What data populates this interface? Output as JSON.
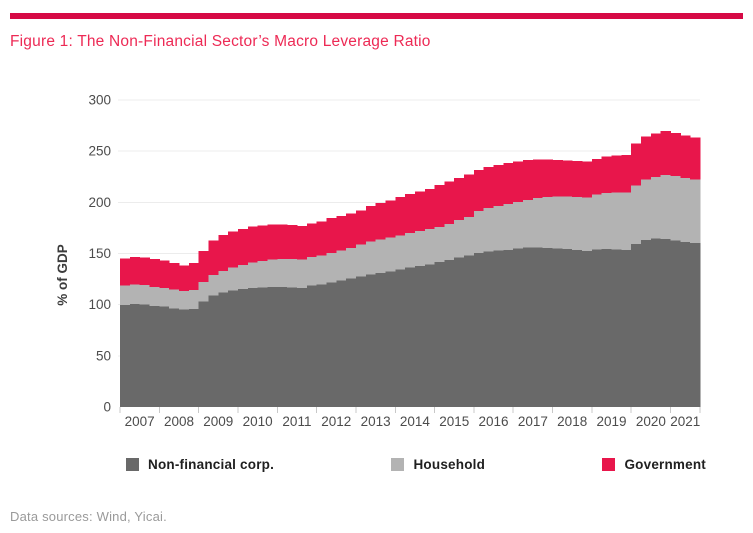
{
  "figure": {
    "caption": "Data sources: Wind, Yicai."
  },
  "colors": {
    "accent_rule": "#d60a45",
    "title_text": "#ed2a55",
    "axis_text": "#4c4c4c",
    "gridline": "#ececec",
    "tick": "#c8c8c8",
    "legend_text": "#202020",
    "caption_text": "#9a9a9a"
  },
  "chart_data": {
    "type": "bar",
    "stacked": true,
    "title": "Figure 1: The Non-Financial Sector’s Macro Leverage Ratio",
    "xlabel": "",
    "ylabel": "% of GDP",
    "ylim": [
      0,
      300
    ],
    "yticks": [
      0,
      50,
      100,
      150,
      200,
      250,
      300
    ],
    "grid": "horizontal",
    "legend_position": "bottom",
    "year_labels": [
      "2007",
      "2008",
      "2009",
      "2010",
      "2011",
      "2012",
      "2013",
      "2014",
      "2015",
      "2016",
      "2017",
      "2018",
      "2019",
      "2020",
      "2021"
    ],
    "x_quarters": [
      "2007Q1",
      "2007Q2",
      "2007Q3",
      "2007Q4",
      "2008Q1",
      "2008Q2",
      "2008Q3",
      "2008Q4",
      "2009Q1",
      "2009Q2",
      "2009Q3",
      "2009Q4",
      "2010Q1",
      "2010Q2",
      "2010Q3",
      "2010Q4",
      "2011Q1",
      "2011Q2",
      "2011Q3",
      "2011Q4",
      "2012Q1",
      "2012Q2",
      "2012Q3",
      "2012Q4",
      "2013Q1",
      "2013Q2",
      "2013Q3",
      "2013Q4",
      "2014Q1",
      "2014Q2",
      "2014Q3",
      "2014Q4",
      "2015Q1",
      "2015Q2",
      "2015Q3",
      "2015Q4",
      "2016Q1",
      "2016Q2",
      "2016Q3",
      "2016Q4",
      "2017Q1",
      "2017Q2",
      "2017Q3",
      "2017Q4",
      "2018Q1",
      "2018Q2",
      "2018Q3",
      "2018Q4",
      "2019Q1",
      "2019Q2",
      "2019Q3",
      "2019Q4",
      "2020Q1",
      "2020Q2",
      "2020Q3",
      "2020Q4",
      "2021Q1",
      "2021Q2",
      "2021Q3"
    ],
    "series": [
      {
        "name": "Non-financial corp.",
        "color": "#696969",
        "values": [
          99.5,
          100.5,
          100,
          98.5,
          98,
          96.5,
          95.5,
          96,
          103,
          109,
          112,
          114,
          115.5,
          116.5,
          117,
          117.5,
          117.5,
          117,
          116.5,
          118.5,
          119.5,
          121.5,
          123.5,
          125.5,
          127.5,
          129.5,
          131,
          132.5,
          134.5,
          136.5,
          138,
          139.5,
          141.5,
          143.5,
          146,
          148,
          150.5,
          152,
          153,
          153.5,
          155,
          156,
          156,
          155.5,
          155,
          154.5,
          153.5,
          152.5,
          154,
          154.5,
          154,
          153.5,
          159.5,
          163,
          164.5,
          164,
          162.5,
          161,
          160.5
        ]
      },
      {
        "name": "Household",
        "color": "#b3b3b3",
        "values": [
          19,
          19,
          19,
          19,
          18.5,
          18.5,
          18,
          18.5,
          19,
          20,
          21,
          22.5,
          23.5,
          24.5,
          25.5,
          26.5,
          27,
          27.5,
          27.5,
          28,
          28.5,
          29,
          29.5,
          30,
          31.5,
          32,
          32.5,
          33,
          33,
          33.5,
          34,
          34.5,
          34.5,
          35.5,
          36.5,
          37.5,
          41,
          42.5,
          43.5,
          45,
          45.5,
          46.5,
          48,
          49.5,
          50.5,
          51,
          51.5,
          52,
          53.5,
          54.5,
          55.5,
          56,
          57,
          59.5,
          60.5,
          62.5,
          63,
          63,
          62
        ]
      },
      {
        "name": "Government",
        "color": "#e8164b",
        "values": [
          26.5,
          27,
          27,
          27,
          26.5,
          25.5,
          25,
          26,
          30.5,
          33.5,
          35,
          35,
          35,
          35.5,
          35,
          34.5,
          34,
          33.5,
          33,
          33,
          33.5,
          34,
          33.5,
          33.5,
          33,
          35,
          36,
          36.5,
          37.5,
          38,
          38.5,
          39,
          41,
          41.5,
          41.5,
          41.5,
          40,
          40,
          40,
          40,
          39.5,
          39,
          38,
          37,
          36,
          35.5,
          35.5,
          35.5,
          35,
          36,
          36.5,
          37,
          41,
          42,
          42.5,
          43,
          42.5,
          41.5,
          41
        ]
      }
    ]
  }
}
